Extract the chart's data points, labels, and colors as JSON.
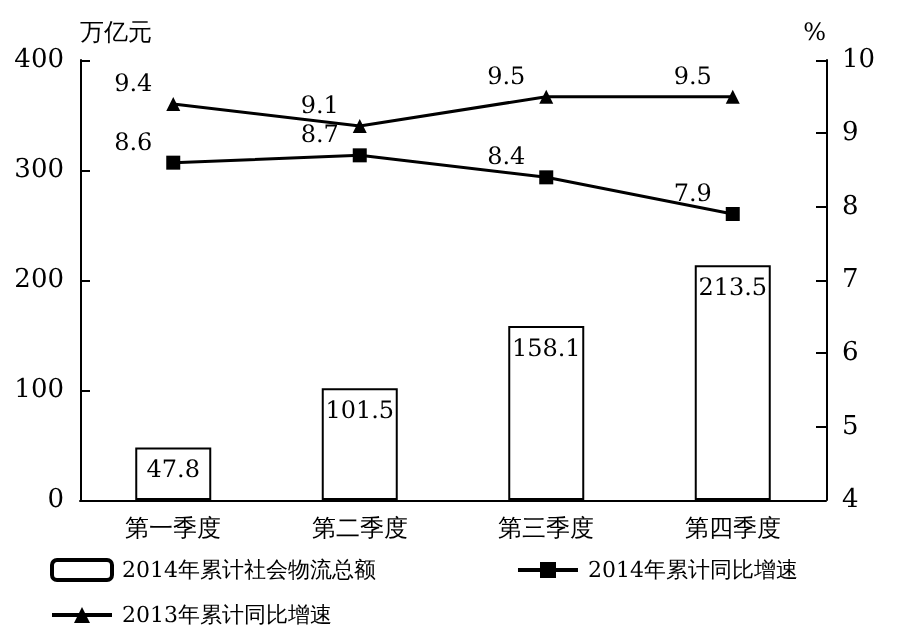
{
  "chart_data": {
    "type": "bar",
    "categories": [
      "第一季度",
      "第二季度",
      "第三季度",
      "第四季度"
    ],
    "ylabel": "万亿元",
    "y2label": "%",
    "ylim": [
      0,
      400
    ],
    "yticks": [
      0,
      100,
      200,
      300,
      400
    ],
    "y2lim": [
      4,
      10
    ],
    "y2ticks": [
      4,
      5,
      6,
      7,
      8,
      9,
      10
    ],
    "series": [
      {
        "name": "2014年累计社会物流总额",
        "color": "#ffffff",
        "values": [
          47.8,
          101.5,
          158.1,
          213.5
        ]
      },
      {
        "name": "2014年累计同比增速",
        "type": "line",
        "axis": "y2",
        "marker": "square",
        "color": "#000000",
        "values": [
          8.6,
          8.7,
          8.4,
          7.9
        ]
      },
      {
        "name": "2013年累计同比增速",
        "type": "line",
        "axis": "y2",
        "marker": "triangle",
        "color": "#000000",
        "values": [
          9.4,
          9.1,
          9.5,
          9.5
        ]
      }
    ],
    "data_labels": true,
    "grid": false,
    "legend": "bottom",
    "line_style": "solid"
  }
}
